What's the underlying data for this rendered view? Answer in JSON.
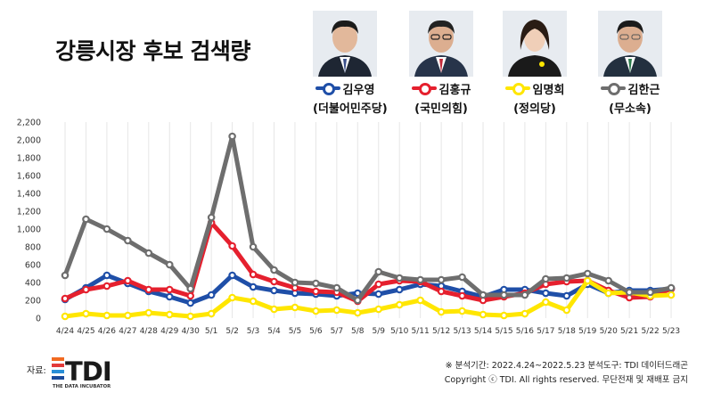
{
  "title": "강릉시장 후보 검색량",
  "candidates": [
    {
      "name": "김우영",
      "party": "(더불어민주당)",
      "color": "#1f4fa8"
    },
    {
      "name": "김홍규",
      "party": "(국민의힘)",
      "color": "#e5202e"
    },
    {
      "name": "임명희",
      "party": "(정의당)",
      "color": "#ffe600"
    },
    {
      "name": "김한근",
      "party": "(무소속)",
      "color": "#6e6e6e"
    }
  ],
  "chart_data": {
    "type": "line",
    "title": "강릉시장 후보 검색량",
    "categories": [
      "4/24",
      "4/25",
      "4/26",
      "4/27",
      "4/28",
      "4/29",
      "4/30",
      "5/1",
      "5/2",
      "5/3",
      "5/4",
      "5/5",
      "5/6",
      "5/7",
      "5/8",
      "5/9",
      "5/10",
      "5/11",
      "5/12",
      "5/13",
      "5/14",
      "5/15",
      "5/16",
      "5/17",
      "5/18",
      "5/19",
      "5/20",
      "5/21",
      "5/22",
      "5/23"
    ],
    "yticks": [
      "0",
      "200",
      "400",
      "600",
      "800",
      "1,000",
      "1,200",
      "1,400",
      "1,600",
      "1,800",
      "2,000",
      "2,200"
    ],
    "ylim": [
      0,
      2200
    ],
    "grid": "vertical",
    "series": [
      {
        "name": "김우영",
        "color": "#1f4fa8",
        "values": [
          210,
          340,
          480,
          390,
          300,
          240,
          170,
          260,
          480,
          350,
          310,
          280,
          270,
          250,
          280,
          270,
          320,
          380,
          360,
          300,
          240,
          320,
          320,
          280,
          250,
          380,
          280,
          310,
          310,
          330
        ]
      },
      {
        "name": "김홍규",
        "color": "#e5202e",
        "values": [
          220,
          320,
          360,
          420,
          320,
          320,
          250,
          1070,
          810,
          490,
          410,
          340,
          300,
          290,
          190,
          380,
          420,
          410,
          300,
          250,
          200,
          240,
          280,
          380,
          410,
          420,
          310,
          230,
          240,
          330
        ]
      },
      {
        "name": "임명희",
        "color": "#ffe600",
        "values": [
          20,
          50,
          30,
          30,
          60,
          40,
          20,
          50,
          230,
          190,
          100,
          120,
          80,
          90,
          60,
          100,
          150,
          200,
          70,
          80,
          40,
          30,
          50,
          180,
          90,
          420,
          280,
          290,
          250,
          260
        ]
      },
      {
        "name": "김한근",
        "color": "#6e6e6e",
        "values": [
          480,
          1110,
          1000,
          870,
          730,
          600,
          330,
          1130,
          2040,
          800,
          540,
          400,
          390,
          340,
          200,
          520,
          450,
          430,
          430,
          460,
          260,
          260,
          260,
          440,
          450,
          500,
          420,
          290,
          290,
          340
        ]
      }
    ]
  },
  "source_label": "자료:",
  "logo_text": "TDI",
  "logo_sub": "THE DATA INCUBATOR",
  "footnote_line1": "※ 분석기간: 2022.4.24~2022.5.23   분석도구: TDI 데이터드래곤",
  "footnote_line2": "Copyright ⓒ TDI. All rights reserved. 무단전재 및 재배포 금지"
}
